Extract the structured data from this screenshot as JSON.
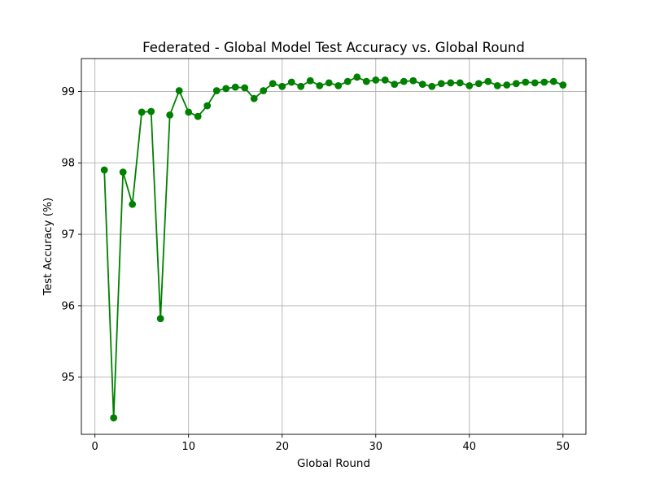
{
  "chart_data": {
    "type": "line",
    "title": "Federated - Global Model Test Accuracy vs. Global Round",
    "xlabel": "Global Round",
    "ylabel": "Test Accuracy (%)",
    "xlim": [
      -1.45,
      52.45
    ],
    "ylim": [
      94.2,
      99.46
    ],
    "xticks": [
      0,
      10,
      20,
      30,
      40,
      50
    ],
    "yticks": [
      95,
      96,
      97,
      98,
      99
    ],
    "grid": true,
    "series": [
      {
        "color": "#008000",
        "marker": "circle",
        "x": [
          1,
          2,
          3,
          4,
          5,
          6,
          7,
          8,
          9,
          10,
          11,
          12,
          13,
          14,
          15,
          16,
          17,
          18,
          19,
          20,
          21,
          22,
          23,
          24,
          25,
          26,
          27,
          28,
          29,
          30,
          31,
          32,
          33,
          34,
          35,
          36,
          37,
          38,
          39,
          40,
          41,
          42,
          43,
          44,
          45,
          46,
          47,
          48,
          49,
          50
        ],
        "y": [
          97.9,
          94.43,
          97.87,
          97.42,
          98.71,
          98.72,
          95.82,
          98.67,
          99.01,
          98.71,
          98.65,
          98.8,
          99.01,
          99.04,
          99.06,
          99.05,
          98.9,
          99.01,
          99.11,
          99.07,
          99.13,
          99.07,
          99.15,
          99.08,
          99.12,
          99.08,
          99.14,
          99.2,
          99.14,
          99.16,
          99.16,
          99.1,
          99.14,
          99.15,
          99.1,
          99.07,
          99.11,
          99.12,
          99.12,
          99.08,
          99.11,
          99.14,
          99.08,
          99.09,
          99.11,
          99.13,
          99.12,
          99.13,
          99.14,
          99.09
        ]
      }
    ]
  }
}
